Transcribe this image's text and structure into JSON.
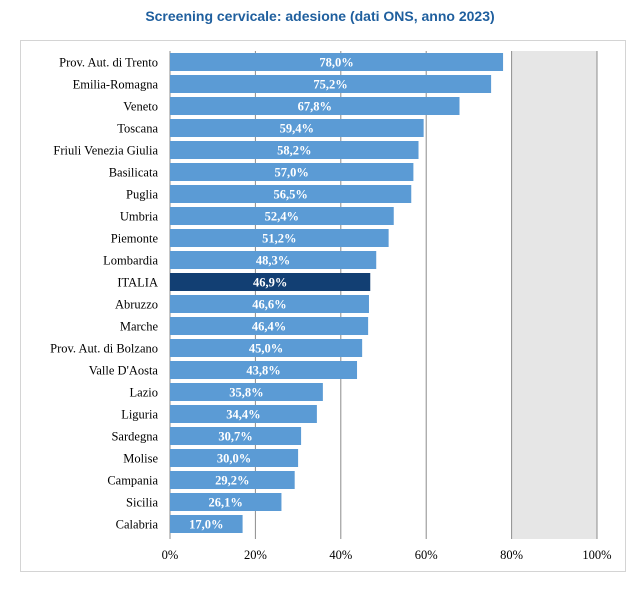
{
  "chart_data": {
    "type": "bar",
    "orientation": "horizontal",
    "title": "Screening cervicale: adesione (dati ONS, anno 2023)",
    "xlabel": "",
    "ylabel": "",
    "xlim": [
      0,
      100
    ],
    "x_ticks": [
      "0%",
      "20%",
      "40%",
      "60%",
      "80%",
      "100%"
    ],
    "grid": true,
    "legend": "none",
    "categories": [
      "Prov. Aut. di Trento",
      "Emilia-Romagna",
      "Veneto",
      "Toscana",
      "Friuli Venezia Giulia",
      "Basilicata",
      "Puglia",
      "Umbria",
      "Piemonte",
      "Lombardia",
      "ITALIA",
      "Abruzzo",
      "Marche",
      "Prov. Aut. di Bolzano",
      "Valle D'Aosta",
      "Lazio",
      "Liguria",
      "Sardegna",
      "Molise",
      "Campania",
      "Sicilia",
      "Calabria"
    ],
    "values": [
      78.0,
      75.2,
      67.8,
      59.4,
      58.2,
      57.0,
      56.5,
      52.4,
      51.2,
      48.3,
      46.9,
      46.6,
      46.4,
      45.0,
      43.8,
      35.8,
      34.4,
      30.7,
      30.0,
      29.2,
      26.1,
      17.0
    ],
    "data_labels": [
      "78,0%",
      "75,2%",
      "67,8%",
      "59,4%",
      "58,2%",
      "57,0%",
      "56,5%",
      "52,4%",
      "51,2%",
      "48,3%",
      "46,9%",
      "46,6%",
      "46,4%",
      "45,0%",
      "43,8%",
      "35,8%",
      "34,4%",
      "30,7%",
      "30,0%",
      "29,2%",
      "26,1%",
      "17,0%"
    ],
    "highlight_category": "ITALIA",
    "colors": {
      "bar": "#5b9bd5",
      "highlight_bar": "#123f73",
      "plot_bg_band": "#e6e6e6",
      "gridline": "#8c8c8c",
      "title": "#1f5f9e",
      "axis_text": "#000000",
      "label_text": "#ffffff"
    }
  }
}
